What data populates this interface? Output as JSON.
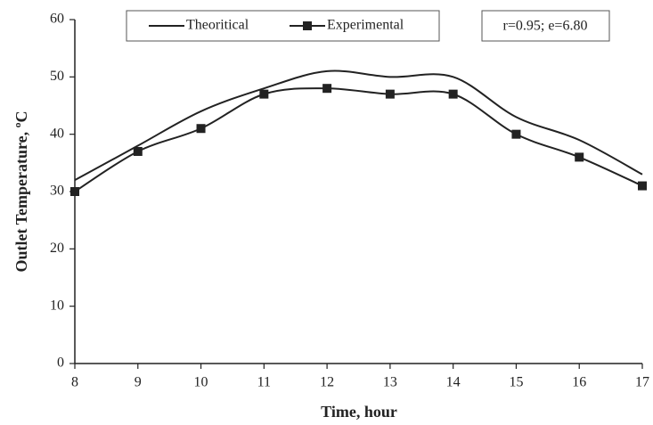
{
  "chart_data": {
    "type": "line",
    "xlabel": "Time, hour",
    "ylabel": "Outlet Temperature, ºC",
    "annotation": "r=0.95; e=6.80",
    "x": [
      8,
      9,
      10,
      11,
      12,
      13,
      14,
      15,
      16,
      17
    ],
    "series": [
      {
        "name": "Theoritical",
        "color": "#222222",
        "marker": "none",
        "values": [
          32,
          38,
          44,
          48,
          51,
          50,
          50,
          43,
          39,
          33
        ]
      },
      {
        "name": "Experimental",
        "color": "#222222",
        "marker": "square",
        "values": [
          30,
          37,
          41,
          47,
          48,
          47,
          47,
          40,
          36,
          31
        ]
      }
    ],
    "xlim": [
      8,
      17
    ],
    "xticks": [
      8,
      9,
      10,
      11,
      12,
      13,
      14,
      15,
      16,
      17
    ],
    "ylim": [
      0,
      60
    ],
    "yticks": [
      0,
      10,
      20,
      30,
      40,
      50,
      60
    ],
    "grid": false,
    "legend": "top"
  }
}
